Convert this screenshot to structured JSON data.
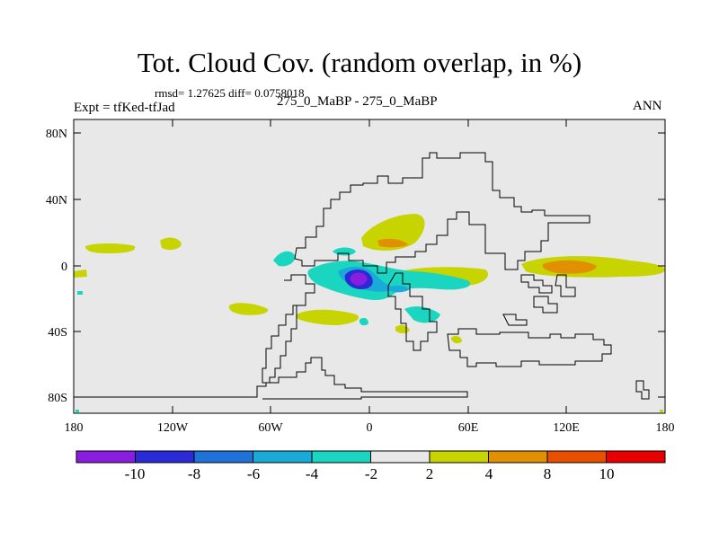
{
  "title": "Tot. Cloud Cov. (random overlap, in %)",
  "stats": "rmsd= 1.27625 diff= 0.0758018",
  "experiment": "Expt = tfKed-tfJad",
  "case": "275_0_MaBP - 275_0_MaBP",
  "season": "ANN",
  "map": {
    "y_ticks": [
      "80N",
      "40N",
      "0",
      "40S",
      "80S"
    ],
    "x_ticks": [
      "180",
      "120W",
      "60W",
      "0",
      "60E",
      "120E",
      "180"
    ]
  },
  "colorbar": {
    "labels": [
      "-10",
      "-8",
      "-6",
      "-4",
      "-2",
      "2",
      "4",
      "8",
      "10"
    ],
    "colors": [
      "#8a1ee0",
      "#2a2ad6",
      "#1e72d8",
      "#1aaad8",
      "#1ad6c0",
      "#e8e8e8",
      "#c8d400",
      "#e09000",
      "#e85000",
      "#e80000"
    ]
  },
  "colors": {
    "land_bg": "#e8e8e8",
    "yellow": "#c8d400",
    "orange": "#e09000",
    "cyan": "#1ad6c0",
    "lightblue": "#1aaad8",
    "blue": "#2a2ad6",
    "purple": "#8a1ee0"
  }
}
